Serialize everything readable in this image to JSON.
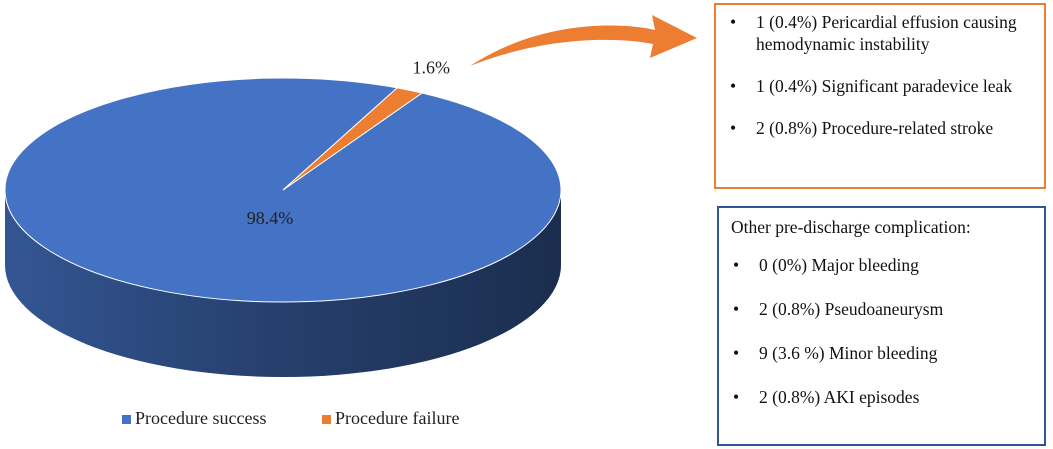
{
  "chart_data": {
    "type": "pie",
    "categories": [
      "Procedure success",
      "Procedure failure"
    ],
    "values": [
      98.4,
      1.6
    ],
    "value_labels": [
      "98.4%",
      "1.6%"
    ],
    "colors": [
      "#4472c4",
      "#ed7d31"
    ],
    "legend": "bottom"
  },
  "failure_box": {
    "items": [
      "1 (0.4%) Pericardial effusion causing hemodynamic instability",
      "1 (0.4%) Significant paradevice leak",
      "2 (0.8%) Procedure-related stroke"
    ]
  },
  "complications_box": {
    "title": "Other pre-discharge complication:",
    "items": [
      "0 (0%) Major bleeding",
      "2 (0.8%) Pseudoaneurysm",
      "9 (3.6 %) Minor bleeding",
      "2 (0.8%) AKI episodes"
    ]
  }
}
